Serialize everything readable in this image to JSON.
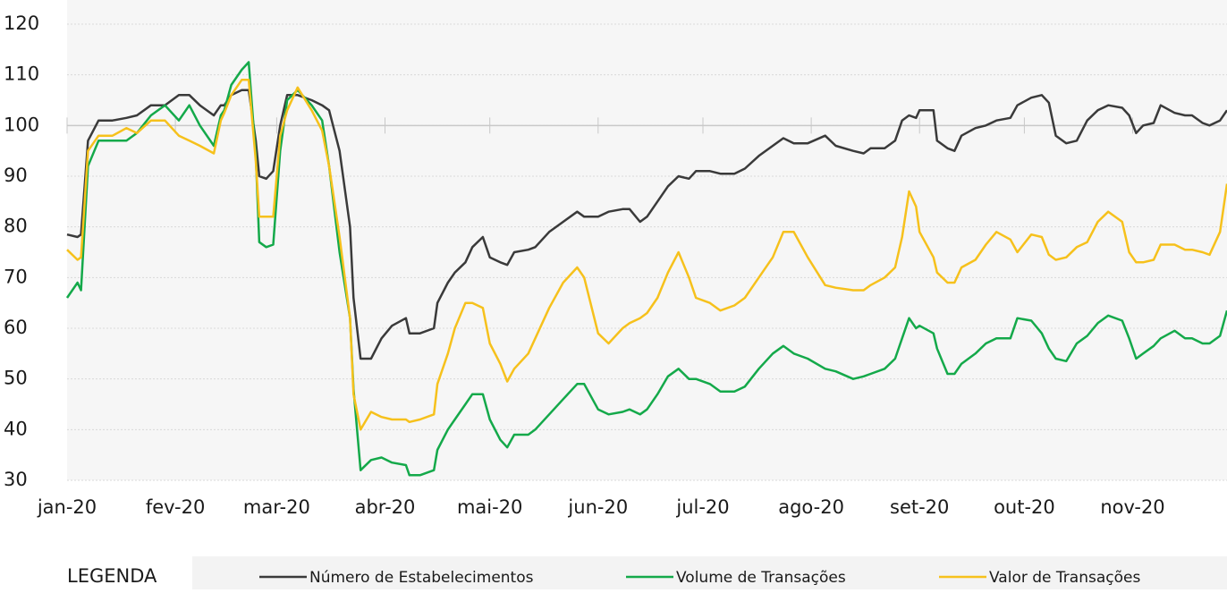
{
  "chart_data": {
    "type": "line",
    "legend_title": "LEGENDA",
    "x": [
      0,
      3,
      4,
      6,
      9,
      13,
      17,
      20,
      24,
      28,
      32,
      35,
      38,
      42,
      44,
      45,
      47,
      50,
      52,
      54,
      55,
      57,
      59,
      61,
      63,
      66,
      70,
      73,
      75,
      78,
      81,
      82,
      84,
      87,
      90,
      93,
      97,
      98,
      101,
      105,
      106,
      109,
      111,
      114,
      116,
      119,
      121,
      124,
      126,
      128,
      132,
      134,
      138,
      142,
      146,
      148,
      152,
      155,
      159,
      161,
      164,
      166,
      169,
      172,
      175,
      178,
      180,
      184,
      187,
      191,
      194,
      198,
      202,
      205,
      208,
      212,
      217,
      220,
      225,
      228,
      230,
      234,
      237,
      239,
      241,
      243,
      244,
      248,
      249,
      252,
      254,
      256,
      260,
      263,
      266,
      270,
      272,
      276,
      279,
      281,
      283,
      286,
      289,
      292,
      295,
      298,
      302,
      304,
      306,
      308,
      311,
      313,
      317,
      320,
      322,
      325,
      327,
      330,
      332
    ],
    "xlim": [
      0,
      332
    ],
    "xticks": [
      {
        "value": 0,
        "label": "jan-20"
      },
      {
        "value": 31,
        "label": "fev-20"
      },
      {
        "value": 60,
        "label": "mar-20"
      },
      {
        "value": 91,
        "label": "abr-20"
      },
      {
        "value": 121,
        "label": "mai-20"
      },
      {
        "value": 152,
        "label": "jun-20"
      },
      {
        "value": 182,
        "label": "jul-20"
      },
      {
        "value": 213,
        "label": "ago-20"
      },
      {
        "value": 244,
        "label": "set-20"
      },
      {
        "value": 274,
        "label": "out-20"
      },
      {
        "value": 305,
        "label": "nov-20"
      }
    ],
    "ylim": [
      30,
      120
    ],
    "yticks": [
      30,
      40,
      50,
      60,
      70,
      80,
      90,
      100,
      110,
      120
    ],
    "grid": true,
    "x_axis_at": 100,
    "legend_position": "bottom",
    "series": [
      {
        "name": "Número de Estabelecimentos",
        "color": "#3a3a3a",
        "values": [
          78.5,
          78,
          78.5,
          97,
          101,
          101,
          101.5,
          102,
          104,
          104,
          106,
          106,
          104,
          102,
          104,
          104,
          106,
          107,
          107,
          97,
          90,
          89.5,
          91,
          100,
          106,
          106,
          105,
          104,
          103,
          95,
          80,
          66,
          54,
          54,
          58,
          60.5,
          62,
          59,
          59,
          60,
          65,
          69,
          71,
          73,
          76,
          78,
          74,
          73,
          72.5,
          75,
          75.5,
          76,
          79,
          81,
          83,
          82,
          82,
          83,
          83.5,
          83.5,
          81,
          82,
          85,
          88,
          90,
          89.5,
          91,
          91,
          90.5,
          90.5,
          91.5,
          94,
          96,
          97.5,
          96.5,
          96.5,
          98,
          96,
          95,
          94.5,
          95.5,
          95.5,
          97,
          101,
          102,
          101.5,
          103,
          103,
          97,
          95.5,
          95,
          98,
          99.5,
          100,
          101,
          101.5,
          104,
          105.5,
          106,
          104.5,
          98,
          96.5,
          97,
          101,
          103,
          104,
          103.5,
          102,
          98.5,
          100,
          100.5,
          104,
          102.5,
          102,
          102,
          100.5,
          100,
          101,
          103
        ]
      },
      {
        "name": "Volume de Transações",
        "color": "#14a94a",
        "values": [
          66,
          69,
          67.5,
          92,
          97,
          97,
          97,
          98.5,
          102,
          104,
          101,
          104,
          100,
          96,
          102,
          103,
          108,
          111,
          112.5,
          94,
          77,
          76,
          76.5,
          95,
          105,
          107,
          104,
          101,
          92,
          75,
          62,
          48,
          32,
          34,
          34.5,
          33.5,
          33,
          31,
          31,
          32,
          36,
          40,
          42,
          45,
          47,
          47,
          42,
          38,
          36.5,
          39,
          39,
          40,
          43,
          46,
          49,
          49,
          44,
          43,
          43.5,
          44,
          43,
          44,
          47,
          50.5,
          52,
          50,
          50,
          49,
          47.5,
          47.5,
          48.5,
          52,
          55,
          56.5,
          55,
          54,
          52,
          51.5,
          50,
          50.5,
          51,
          52,
          54,
          58,
          62,
          60,
          60.5,
          59,
          56,
          51,
          51,
          53,
          55,
          57,
          58,
          58,
          62,
          61.5,
          59,
          56,
          54,
          53.5,
          57,
          58.5,
          61,
          62.5,
          61.5,
          58,
          54,
          55,
          56.5,
          58,
          59.5,
          58,
          58,
          57,
          57,
          58.5,
          63.5
        ]
      },
      {
        "name": "Valor de Transações",
        "color": "#f6c11c",
        "values": [
          75.5,
          73.5,
          74,
          95,
          98,
          98,
          99.5,
          98.5,
          101,
          101,
          98,
          97,
          96,
          94.5,
          101,
          102.5,
          106,
          109,
          109,
          93,
          82,
          82,
          82,
          98,
          103,
          107.5,
          103,
          99,
          92,
          78,
          62,
          47,
          40,
          43.5,
          42.5,
          42,
          42,
          41.5,
          42,
          43,
          49,
          55,
          60,
          65,
          65,
          64,
          57,
          53,
          49.5,
          52,
          55,
          58,
          64,
          69,
          72,
          70,
          59,
          57,
          60,
          61,
          62,
          63,
          66,
          71,
          75,
          70,
          66,
          65,
          63.5,
          64.5,
          66,
          70,
          74,
          79,
          79,
          74,
          68.5,
          68,
          67.5,
          67.5,
          68.5,
          70,
          72,
          78,
          87,
          84,
          79,
          74,
          71,
          69,
          69,
          72,
          73.5,
          76.5,
          79,
          77.5,
          75,
          78.5,
          78,
          74.5,
          73.5,
          74,
          76,
          77,
          81,
          83,
          81,
          75,
          73,
          73,
          73.5,
          76.5,
          76.5,
          75.5,
          75.5,
          75,
          74.5,
          79,
          88.5
        ]
      }
    ]
  }
}
